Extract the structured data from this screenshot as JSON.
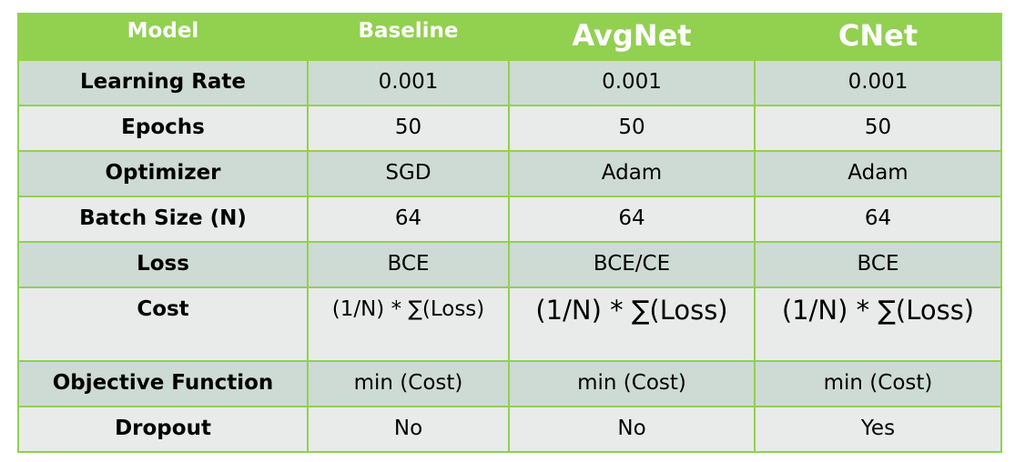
{
  "header": [
    "Model",
    "Baseline",
    "AvgNet",
    "CNet"
  ],
  "rows": [
    {
      "label": "Learning Rate",
      "values": [
        "0.001",
        "0.001",
        "0.001"
      ]
    },
    {
      "label": "Epochs",
      "values": [
        "50",
        "50",
        "50"
      ]
    },
    {
      "label": "Optimizer",
      "values": [
        "SGD",
        "Adam",
        "Adam"
      ]
    },
    {
      "label": "Batch Size (N)",
      "values": [
        "64",
        "64",
        "64"
      ]
    },
    {
      "label": "Loss",
      "values": [
        "BCE",
        "BCE/CE",
        "BCE"
      ]
    },
    {
      "label": "Cost",
      "values": [
        "(1/N) * ∑(Loss)",
        "(1/N) * ∑(Loss)",
        "(1/N) * ∑(Loss)"
      ]
    },
    {
      "label": "Objective Function",
      "values": [
        "min (Cost)",
        "min (Cost)",
        "min (Cost)"
      ]
    },
    {
      "label": "Dropout",
      "values": [
        "No",
        "No",
        "Yes"
      ]
    }
  ],
  "colors": {
    "header_bg": "#92d050",
    "header_text": "#ffffff",
    "border": "#92d050",
    "row_odd_bg": "#cddbd4",
    "row_even_bg": "#e8ebea"
  }
}
